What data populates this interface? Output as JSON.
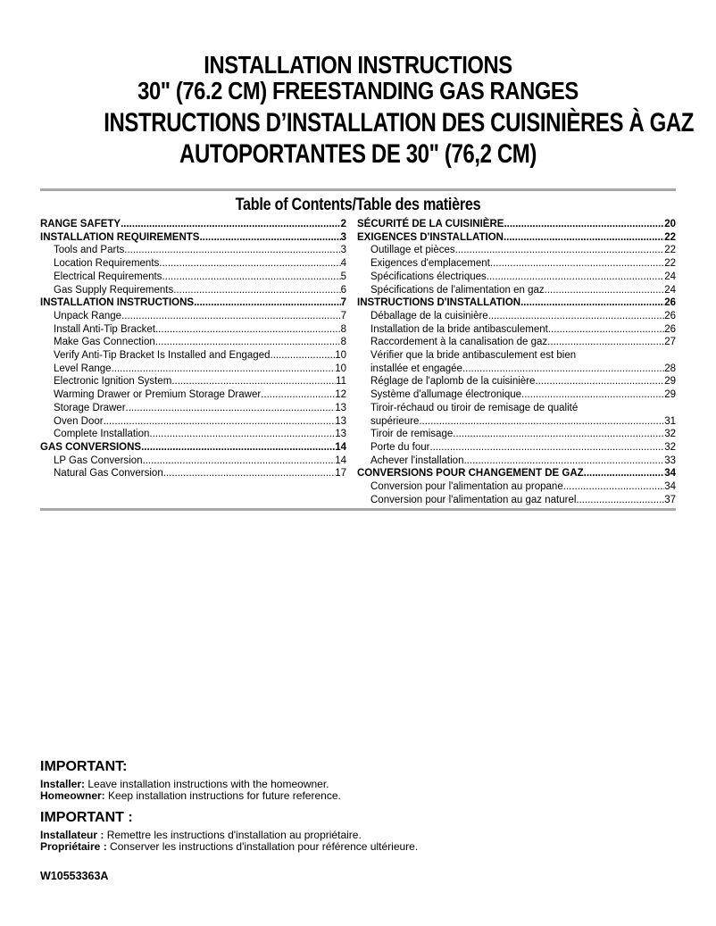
{
  "colors": {
    "text": "#000000",
    "rule": "#a8a8a8",
    "background": "#ffffff"
  },
  "title": {
    "en_line1": "INSTALLATION INSTRUCTIONS",
    "en_line2": "30\" (76.2 CM) FREESTANDING GAS RANGES",
    "fr_line1": "INSTRUCTIONS D’INSTALLATION DES CUISINIÈRES À GAZ",
    "fr_line2": "AUTOPORTANTES DE 30\" (76,2 CM)"
  },
  "toc": {
    "heading": "Table of Contents/Table des matières",
    "left": [
      {
        "label": "RANGE SAFETY ",
        "page": "2",
        "bold": true,
        "indent": false,
        "dots": true
      },
      {
        "label": "INSTALLATION REQUIREMENTS",
        "page": "3",
        "bold": true,
        "indent": false,
        "dots": true
      },
      {
        "label": "Tools and Parts ",
        "page": "3",
        "bold": false,
        "indent": true,
        "dots": true
      },
      {
        "label": "Location Requirements",
        "page": "4",
        "bold": false,
        "indent": true,
        "dots": true
      },
      {
        "label": "Electrical Requirements ",
        "page": "5",
        "bold": false,
        "indent": true,
        "dots": true
      },
      {
        "label": "Gas Supply Requirements",
        "page": "6",
        "bold": false,
        "indent": true,
        "dots": true
      },
      {
        "label": "INSTALLATION INSTRUCTIONS ",
        "page": "7",
        "bold": true,
        "indent": false,
        "dots": true
      },
      {
        "label": "Unpack Range",
        "page": "7",
        "bold": false,
        "indent": true,
        "dots": true
      },
      {
        "label": "Install Anti-Tip Bracket",
        "page": "8",
        "bold": false,
        "indent": true,
        "dots": true
      },
      {
        "label": "Make Gas Connection ",
        "page": "8",
        "bold": false,
        "indent": true,
        "dots": true
      },
      {
        "label": "Verify Anti-Tip Bracket Is Installed and Engaged ",
        "page": "10",
        "bold": false,
        "indent": true,
        "dots": true
      },
      {
        "label": "Level Range",
        "page": "10",
        "bold": false,
        "indent": true,
        "dots": true
      },
      {
        "label": "Electronic Ignition System ",
        "page": "11",
        "bold": false,
        "indent": true,
        "dots": true
      },
      {
        "label": "Warming Drawer or Premium Storage Drawer",
        "page": "12",
        "bold": false,
        "indent": true,
        "dots": true
      },
      {
        "label": "Storage Drawer ",
        "page": "13",
        "bold": false,
        "indent": true,
        "dots": true
      },
      {
        "label": "Oven Door ",
        "page": "13",
        "bold": false,
        "indent": true,
        "dots": true
      },
      {
        "label": "Complete Installation ",
        "page": "13",
        "bold": false,
        "indent": true,
        "dots": true
      },
      {
        "label": "GAS CONVERSIONS",
        "page": "14",
        "bold": true,
        "indent": false,
        "dots": true
      },
      {
        "label": "LP Gas Conversion ",
        "page": "14",
        "bold": false,
        "indent": true,
        "dots": true
      },
      {
        "label": "Natural Gas Conversion",
        "page": "17",
        "bold": false,
        "indent": true,
        "dots": true
      }
    ],
    "right": [
      {
        "label": "SÉCURITÉ DE LA CUISINIÈRE",
        "page": "20",
        "bold": true,
        "indent": false,
        "dots": true
      },
      {
        "label": "EXIGENCES D'INSTALLATION",
        "page": "22",
        "bold": true,
        "indent": false,
        "dots": true
      },
      {
        "label": "Outillage et pièces",
        "page": "22",
        "bold": false,
        "indent": true,
        "dots": true
      },
      {
        "label": "Exigences d'emplacement",
        "page": "22",
        "bold": false,
        "indent": true,
        "dots": true
      },
      {
        "label": "Spécifications électriques",
        "page": "24",
        "bold": false,
        "indent": true,
        "dots": true
      },
      {
        "label": "Spécifications de l'alimentation en gaz ",
        "page": "24",
        "bold": false,
        "indent": true,
        "dots": true
      },
      {
        "label": "INSTRUCTIONS D'INSTALLATION ",
        "page": "26",
        "bold": true,
        "indent": false,
        "dots": true
      },
      {
        "label": "Déballage de la cuisinière",
        "page": "26",
        "bold": false,
        "indent": true,
        "dots": true
      },
      {
        "label": "Installation de la bride antibasculement ",
        "page": "26",
        "bold": false,
        "indent": true,
        "dots": true
      },
      {
        "label": "Raccordement à la canalisation de gaz",
        "page": "27",
        "bold": false,
        "indent": true,
        "dots": true
      },
      {
        "label": "Vérifier que la bride antibasculement est bien",
        "page": "",
        "bold": false,
        "indent": true,
        "dots": false
      },
      {
        "label": "installée et engagée ",
        "page": "28",
        "bold": false,
        "indent": true,
        "dots": true
      },
      {
        "label": "Réglage de l'aplomb de la cuisinière",
        "page": "29",
        "bold": false,
        "indent": true,
        "dots": true
      },
      {
        "label": "Système d'allumage électronique ",
        "page": "29",
        "bold": false,
        "indent": true,
        "dots": true
      },
      {
        "label": "Tiroir-réchaud ou tiroir de remisage de qualité",
        "page": "",
        "bold": false,
        "indent": true,
        "dots": false
      },
      {
        "label": "supérieure",
        "page": "31",
        "bold": false,
        "indent": true,
        "dots": true
      },
      {
        "label": "Tiroir de remisage ",
        "page": "32",
        "bold": false,
        "indent": true,
        "dots": true
      },
      {
        "label": "Porte du four ",
        "page": "32",
        "bold": false,
        "indent": true,
        "dots": true
      },
      {
        "label": "Achever l'installation ",
        "page": "33",
        "bold": false,
        "indent": true,
        "dots": true
      },
      {
        "label": "CONVERSIONS POUR CHANGEMENT DE GAZ ",
        "page": "34",
        "bold": true,
        "indent": false,
        "dots": true
      },
      {
        "label": "Conversion pour l'alimentation au propane ",
        "page": "34",
        "bold": false,
        "indent": true,
        "dots": true
      },
      {
        "label": "Conversion pour l'alimentation au gaz naturel ",
        "page": "37",
        "bold": false,
        "indent": true,
        "dots": true
      }
    ]
  },
  "important_en": {
    "heading": "IMPORTANT:",
    "lines": [
      {
        "lead": "Installer:",
        "text": " Leave installation instructions with the homeowner."
      },
      {
        "lead": "Homeowner:",
        "text": " Keep installation instructions for future reference."
      }
    ]
  },
  "important_fr": {
    "heading": "IMPORTANT :",
    "lines": [
      {
        "lead": "Installateur :",
        "text": " Remettre les instructions d'installation au propriétaire."
      },
      {
        "lead": "Propriétaire :",
        "text": " Conserver les instructions d'installation pour référence ultérieure."
      }
    ]
  },
  "footer": {
    "doc_number": "W10553363A"
  }
}
